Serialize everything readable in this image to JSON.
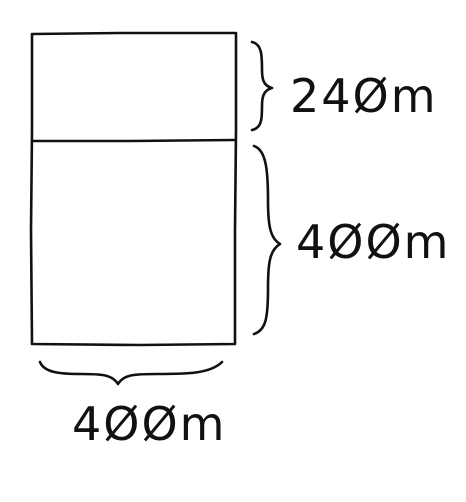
{
  "diagram": {
    "labels": {
      "top_section_height": "24Øm",
      "bottom_section_height": "4ØØm",
      "width": "4ØØm"
    }
  }
}
